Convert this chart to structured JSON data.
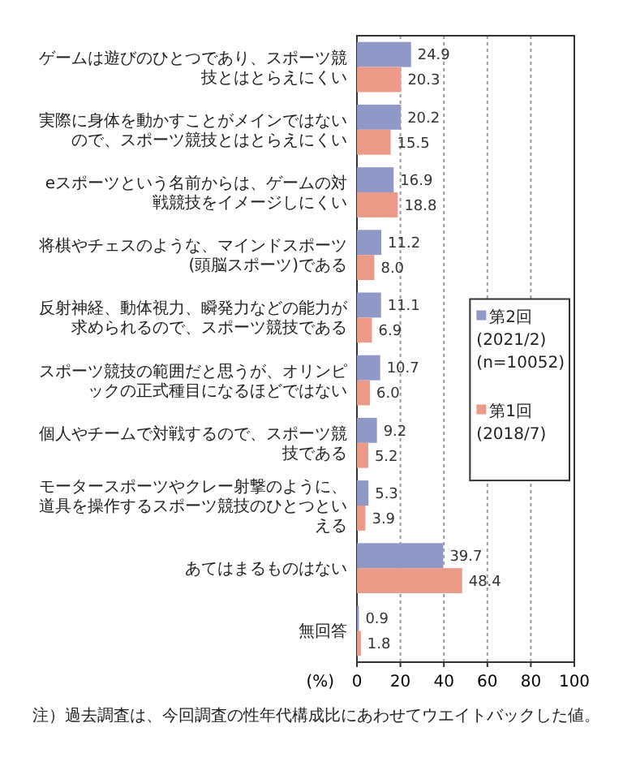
{
  "chart_data": {
    "type": "bar",
    "orientation": "horizontal",
    "categories": [
      "ゲームは遊びのひとつであり、スポーツ競技とはとらえにくい",
      "実際に身体を動かすことがメインではないので、スポーツ競技とはとらえにくい",
      "eスポーツという名前からは、ゲームの対戦競技をイメージしにくい",
      "将棋やチェスのような、マインドスポーツ(頭脳スポーツ)である",
      "反射神経、動体視力、瞬発力などの能力が求められるので、スポーツ競技である",
      "スポーツ競技の範囲だと思うが、オリンピックの正式種目になるほどではない",
      "個人やチームで対戦するので、スポーツ競技である",
      "モータースポーツやクレー射撃のように、道具を操作するスポーツ競技のひとつといえる",
      "あてはまるものはない",
      "無回答"
    ],
    "series": [
      {
        "name": "第2回\n(2021/2)\n(n=10052)",
        "color": "#8f98c6",
        "values": [
          24.9,
          20.2,
          16.9,
          11.2,
          11.1,
          10.7,
          9.2,
          5.3,
          39.7,
          0.9
        ],
        "value_labels": [
          "24.9",
          "20.2",
          "16.9",
          "11.2",
          "11.1",
          "10.7",
          "9.2",
          "5.3",
          "39.7",
          "0.9"
        ]
      },
      {
        "name": "第1回\n(2018/7)",
        "color": "#eb9a88",
        "values": [
          20.3,
          15.5,
          18.8,
          8.0,
          6.9,
          6.0,
          5.2,
          3.9,
          48.4,
          1.8
        ],
        "value_labels": [
          "20.3",
          "15.5",
          "18.8",
          "8.0",
          "6.9",
          "6.0",
          "5.2",
          "3.9",
          "48.4",
          "1.8"
        ]
      }
    ],
    "xlim": [
      0,
      100
    ],
    "xticks": [
      0,
      20,
      40,
      60,
      80,
      100
    ],
    "xlabel": "(%)",
    "grid": "x",
    "legend": "right",
    "annotations": [
      "注）過去調査は、今回調査の性年代構成比にあわせてウエイトバックした値。"
    ]
  }
}
